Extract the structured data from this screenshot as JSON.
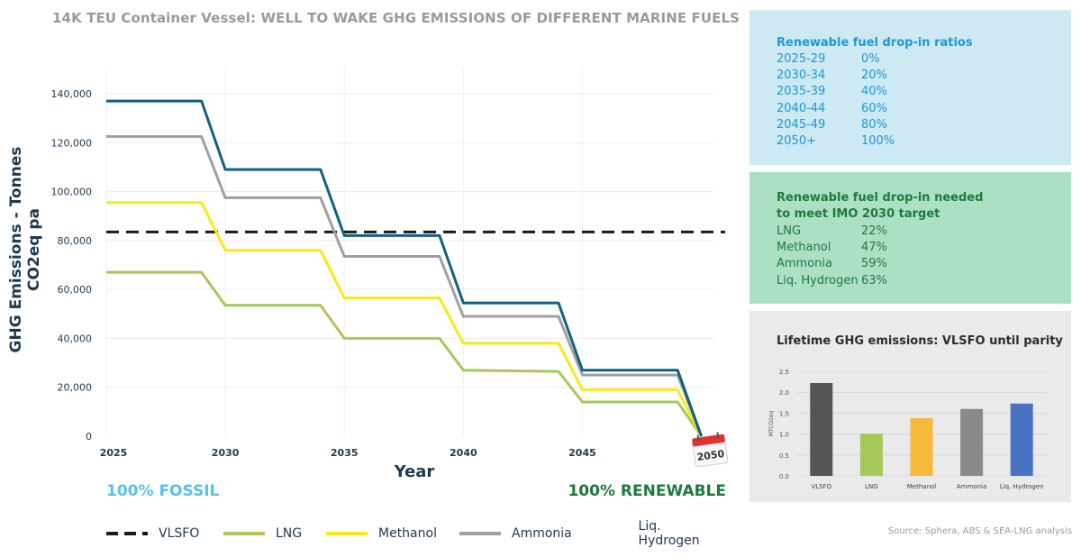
{
  "title": "14K TEU Container Vessel: WELL TO WAKE GHG EMISSIONS OF DIFFERENT MARINE FUELS",
  "footer": {
    "fossil_label": "100% FOSSIL",
    "renewable_label": "100% RENEWABLE",
    "calendar_label": "2050",
    "source": "Source: Sphera, ABS & SEA-LNG analysis"
  },
  "info_blue": {
    "heading": "Renewable fuel drop-in ratios",
    "rows": [
      {
        "k": "2025-29",
        "v": "0%"
      },
      {
        "k": "2030-34",
        "v": "20%"
      },
      {
        "k": "2035-39",
        "v": "40%"
      },
      {
        "k": "2040-44",
        "v": "60%"
      },
      {
        "k": "2045-49",
        "v": "80%"
      },
      {
        "k": "2050+",
        "v": "100%"
      }
    ]
  },
  "info_green": {
    "heading_line1": "Renewable fuel drop-in needed",
    "heading_line2": "to meet IMO 2030 target",
    "rows": [
      {
        "k": "LNG",
        "v": "22%"
      },
      {
        "k": "Methanol",
        "v": "47%"
      },
      {
        "k": "Ammonia",
        "v": "59%"
      },
      {
        "k": "Liq. Hydrogen",
        "v": "63%"
      }
    ]
  },
  "colors": {
    "VLSFO": "#1a1a1a",
    "LNG": "#a6c95a",
    "Methanol": "#f4ea1c",
    "Ammonia": "#a0a0a0",
    "Liq. Hydrogen": "#14607f"
  },
  "chart_data": [
    {
      "type": "line",
      "title": "",
      "xlabel": "Year",
      "ylabel": "GHG Emissions - Tonnes CO2eq pa",
      "xlim": [
        2025,
        2051
      ],
      "ylim": [
        0,
        140000
      ],
      "x_ticks": [
        2025,
        2030,
        2035,
        2040,
        2045
      ],
      "x_tick_labels": [
        "2025",
        "2030",
        "2035",
        "2040",
        "2045"
      ],
      "y_ticks": [
        0,
        20000,
        40000,
        60000,
        80000,
        100000,
        120000,
        140000
      ],
      "y_tick_labels": [
        "0",
        "20,000",
        "40,000",
        "60,000",
        "80,000",
        "100,000",
        "120,000",
        "140,000"
      ],
      "legend_position": "bottom",
      "grid": true,
      "series": [
        {
          "name": "VLSFO",
          "style": "dashed",
          "points": [
            [
              2025,
              83500
            ],
            [
              2051,
              83500
            ]
          ]
        },
        {
          "name": "LNG",
          "points": [
            [
              2025,
              67000
            ],
            [
              2029,
              67000
            ],
            [
              2030,
              53500
            ],
            [
              2034,
              53500
            ],
            [
              2035,
              40000
            ],
            [
              2039,
              40000
            ],
            [
              2040,
              27000
            ],
            [
              2044,
              26500
            ],
            [
              2045,
              14000
            ],
            [
              2049,
              14000
            ],
            [
              2050,
              0
            ]
          ]
        },
        {
          "name": "Methanol",
          "points": [
            [
              2025,
              95500
            ],
            [
              2029,
              95500
            ],
            [
              2030,
              76000
            ],
            [
              2034,
              76000
            ],
            [
              2035,
              56500
            ],
            [
              2039,
              56500
            ],
            [
              2040,
              38000
            ],
            [
              2044,
              38000
            ],
            [
              2045,
              19000
            ],
            [
              2049,
              19000
            ],
            [
              2050,
              0
            ]
          ]
        },
        {
          "name": "Ammonia",
          "points": [
            [
              2025,
              122500
            ],
            [
              2029,
              122500
            ],
            [
              2030,
              97500
            ],
            [
              2034,
              97500
            ],
            [
              2035,
              73500
            ],
            [
              2039,
              73500
            ],
            [
              2040,
              49000
            ],
            [
              2044,
              49000
            ],
            [
              2045,
              25000
            ],
            [
              2049,
              25000
            ],
            [
              2050,
              0
            ]
          ]
        },
        {
          "name": "Liq. Hydrogen",
          "points": [
            [
              2025,
              137000
            ],
            [
              2029,
              137000
            ],
            [
              2030,
              109000
            ],
            [
              2034,
              109000
            ],
            [
              2035,
              82000
            ],
            [
              2039,
              82000
            ],
            [
              2040,
              54500
            ],
            [
              2044,
              54500
            ],
            [
              2045,
              27000
            ],
            [
              2049,
              27000
            ],
            [
              2050,
              0
            ]
          ]
        }
      ]
    },
    {
      "type": "bar",
      "title": "Lifetime GHG emissions: VLSFO until parity",
      "xlabel": "",
      "ylabel": "MTCO2eq",
      "ylim": [
        0,
        2.5
      ],
      "y_ticks": [
        0,
        0.5,
        1.0,
        1.5,
        2.0,
        2.5
      ],
      "y_tick_labels": [
        "0.0",
        "0.5",
        "1.0",
        "1.5",
        "2.0",
        "2.5"
      ],
      "categories": [
        "VLSFO",
        "LNG",
        "Methanol",
        "Ammonia",
        "Liq. Hydrogen"
      ],
      "values": [
        2.22,
        1.01,
        1.38,
        1.6,
        1.73
      ],
      "bar_colors": [
        "#555555",
        "#a6c95a",
        "#f6b93a",
        "#8a8a8a",
        "#4a72c4"
      ],
      "grid": true
    }
  ]
}
